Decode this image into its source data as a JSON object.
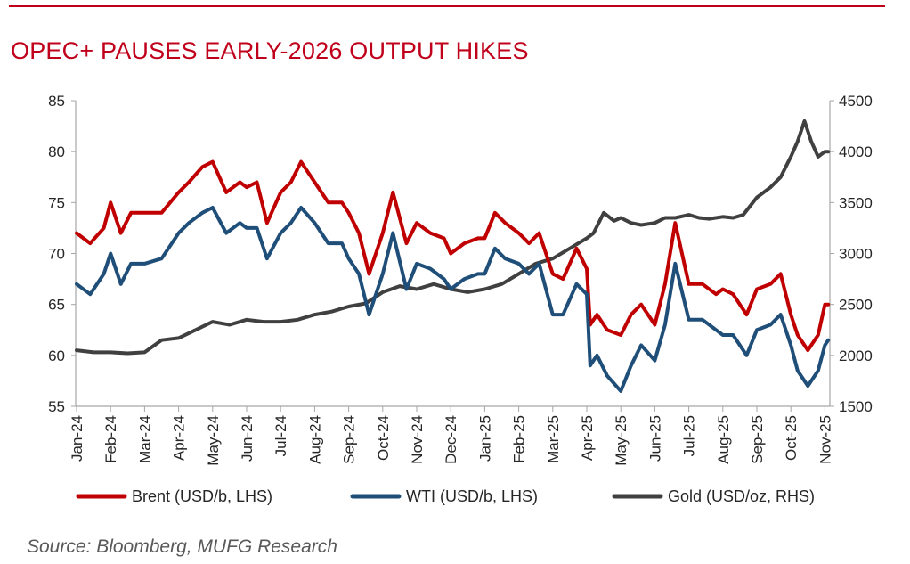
{
  "header": {
    "title": "OPEC+ PAUSES EARLY-2026 OUTPUT HIKES"
  },
  "footer": {
    "source": "Source: Bloomberg, MUFG Research"
  },
  "chart_data": {
    "type": "line",
    "title": "OPEC+ PAUSES EARLY-2026 OUTPUT HIKES",
    "x_tick_labels": [
      "Jan-24",
      "Feb-24",
      "Mar-24",
      "Apr-24",
      "May-24",
      "Jun-24",
      "Jul-24",
      "Aug-24",
      "Sep-24",
      "Oct-24",
      "Nov-24",
      "Dec-24",
      "Jan-25",
      "Feb-25",
      "Mar-25",
      "Apr-25",
      "May-25",
      "Jun-25",
      "Jul-25",
      "Aug-25",
      "Sep-25",
      "Oct-25",
      "Nov-25"
    ],
    "x_unit": "month index (0 = Jan-24)",
    "xlim": [
      0,
      22.2
    ],
    "ylim_left": [
      55,
      85
    ],
    "yticks_left": [
      55,
      60,
      65,
      70,
      75,
      80,
      85
    ],
    "ylim_right": [
      1500,
      4500
    ],
    "yticks_right": [
      1500,
      2000,
      2500,
      3000,
      3500,
      4000,
      4500
    ],
    "grid": false,
    "legend_position": "bottom",
    "series": [
      {
        "name": "Brent (USD/b, LHS)",
        "axis": "left",
        "color": "#c00000",
        "x": [
          0,
          0.4,
          0.8,
          1.0,
          1.3,
          1.6,
          2.0,
          2.5,
          3.0,
          3.3,
          3.7,
          4.0,
          4.4,
          4.8,
          5.0,
          5.3,
          5.6,
          6.0,
          6.3,
          6.6,
          7.0,
          7.4,
          7.8,
          8.0,
          8.3,
          8.6,
          9.0,
          9.3,
          9.7,
          10.0,
          10.4,
          10.8,
          11.0,
          11.4,
          11.8,
          12.0,
          12.3,
          12.6,
          13.0,
          13.3,
          13.6,
          14.0,
          14.3,
          14.7,
          15.0,
          15.1,
          15.3,
          15.6,
          16.0,
          16.3,
          16.6,
          17.0,
          17.3,
          17.6,
          18.0,
          18.4,
          18.8,
          19.0,
          19.3,
          19.7,
          20.0,
          20.4,
          20.7,
          21.0,
          21.2,
          21.5,
          21.8,
          22.0,
          22.1
        ],
        "y": [
          72,
          71,
          72.5,
          75,
          72,
          74,
          74,
          74,
          76,
          77,
          78.5,
          79,
          76,
          77,
          76.5,
          77,
          73,
          76,
          77,
          79,
          77,
          75,
          75,
          74,
          72,
          68,
          72,
          76,
          71,
          73,
          72,
          71.5,
          70,
          71,
          71.5,
          71.5,
          74,
          73,
          72,
          71,
          72,
          68,
          67.5,
          70.5,
          68.5,
          63,
          64,
          62.5,
          62,
          64,
          65,
          63,
          67,
          73,
          67,
          67,
          66,
          66.5,
          66,
          64,
          66.5,
          67,
          68,
          64,
          62,
          60.5,
          62,
          65,
          65
        ]
      },
      {
        "name": "WTI (USD/b, LHS)",
        "axis": "left",
        "color": "#1f4e79",
        "x": [
          0,
          0.4,
          0.8,
          1.0,
          1.3,
          1.6,
          2.0,
          2.5,
          3.0,
          3.3,
          3.7,
          4.0,
          4.4,
          4.8,
          5.0,
          5.3,
          5.6,
          6.0,
          6.3,
          6.6,
          7.0,
          7.4,
          7.8,
          8.0,
          8.3,
          8.6,
          9.0,
          9.3,
          9.7,
          10.0,
          10.4,
          10.8,
          11.0,
          11.4,
          11.8,
          12.0,
          12.3,
          12.6,
          13.0,
          13.3,
          13.6,
          14.0,
          14.3,
          14.7,
          15.0,
          15.1,
          15.3,
          15.6,
          16.0,
          16.3,
          16.6,
          17.0,
          17.3,
          17.6,
          18.0,
          18.4,
          18.8,
          19.0,
          19.3,
          19.7,
          20.0,
          20.4,
          20.7,
          21.0,
          21.2,
          21.5,
          21.8,
          22.0,
          22.1
        ],
        "y": [
          67,
          66,
          68,
          70,
          67,
          69,
          69,
          69.5,
          72,
          73,
          74,
          74.5,
          72,
          73,
          72.5,
          72.5,
          69.5,
          72,
          73,
          74.5,
          73,
          71,
          71,
          69.5,
          68,
          64,
          68,
          72,
          66.5,
          69,
          68.5,
          67.5,
          66.5,
          67.5,
          68,
          68,
          70.5,
          69.5,
          69,
          68,
          69,
          64,
          64,
          67,
          66,
          59,
          60,
          58,
          56.5,
          59,
          61,
          59.5,
          63,
          69,
          63.5,
          63.5,
          62.5,
          62,
          62,
          60,
          62.5,
          63,
          64,
          61,
          58.5,
          57,
          58.5,
          61,
          61.5
        ]
      },
      {
        "name": "Gold (USD/oz, RHS)",
        "axis": "right",
        "color": "#404040",
        "x": [
          0,
          0.5,
          1.0,
          1.5,
          2.0,
          2.5,
          3.0,
          3.5,
          4.0,
          4.5,
          5.0,
          5.5,
          6.0,
          6.5,
          7.0,
          7.5,
          8.0,
          8.5,
          9.0,
          9.5,
          10.0,
          10.5,
          11.0,
          11.5,
          12.0,
          12.5,
          13.0,
          13.5,
          14.0,
          14.5,
          15.0,
          15.2,
          15.5,
          15.8,
          16.0,
          16.3,
          16.6,
          17.0,
          17.3,
          17.6,
          18.0,
          18.3,
          18.6,
          19.0,
          19.3,
          19.6,
          20.0,
          20.4,
          20.7,
          21.0,
          21.2,
          21.4,
          21.6,
          21.8,
          22.0,
          22.1
        ],
        "y": [
          2050,
          2030,
          2030,
          2020,
          2030,
          2150,
          2170,
          2250,
          2330,
          2300,
          2350,
          2330,
          2330,
          2350,
          2400,
          2430,
          2480,
          2510,
          2620,
          2680,
          2650,
          2700,
          2650,
          2620,
          2650,
          2700,
          2800,
          2900,
          2950,
          3050,
          3150,
          3200,
          3400,
          3320,
          3350,
          3300,
          3280,
          3300,
          3350,
          3350,
          3380,
          3350,
          3340,
          3360,
          3350,
          3380,
          3550,
          3650,
          3750,
          3950,
          4100,
          4300,
          4100,
          3950,
          4000,
          4000
        ]
      }
    ]
  }
}
